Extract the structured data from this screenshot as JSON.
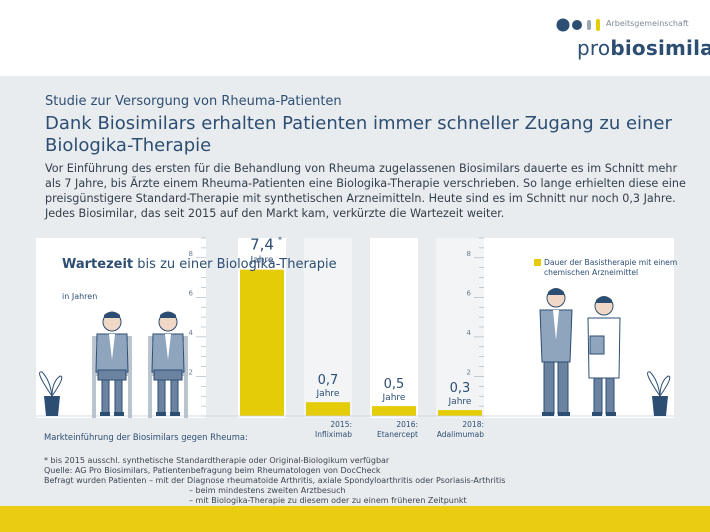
{
  "header": {
    "logo_sup": "Arbeitsgemeinschaft",
    "logo_pro": "pro",
    "logo_bio": "biosimilars",
    "kicker": "Studie zur Versorgung von Rheuma-Patienten",
    "title": "Dank Biosimilars erhalten Patienten immer schneller Zugang zu einer Biologika-Therapie",
    "intro": "Vor Einführung des ersten für die Behandlung von Rheuma zugelassenen Biosimilars dauerte es im Schnitt mehr als 7 Jahre, bis Ärzte einem Rheuma-Patienten eine Biologika-Therapie verschrieben. So lange erhielten diese eine preisgünstigere Standard-Therapie mit synthetischen Arzneimitteln. Heute sind es im Schnitt nur noch 0,3 Jahre. Jedes Biosimilar, das seit 2015 auf den Markt kam, verkürzte die Wartezeit weiter."
  },
  "chart_data": {
    "type": "bar",
    "title_bold": "Wartezeit",
    "title_rest": "bis zu einer Biologika-Therapie",
    "ylabel": "in Jahren",
    "xlabel": "Markteinführung der Biosimilars gegen Rheuma:",
    "legend": "Dauer der Basistherapie mit einem chemischen Arzneimittel",
    "unit_label": "Jahre",
    "ylim": [
      0,
      9
    ],
    "yticks": [
      "2",
      "4",
      "6",
      "8"
    ],
    "categories": [
      "",
      "2015: Infliximab",
      "2016: Etanercept",
      "2018: Adalimumab"
    ],
    "cat_lines": [
      [
        ""
      ],
      [
        "2015:",
        "Infliximab"
      ],
      [
        "2016:",
        "Etanercept"
      ],
      [
        "2018:",
        "Adalimumab"
      ]
    ],
    "values": [
      7.4,
      0.7,
      0.5,
      0.3
    ],
    "value_labels": [
      "7,4*",
      "0,7",
      "0,5",
      "0,3"
    ],
    "bar_color": "#e5cc09",
    "text_color": "#2d4e73"
  },
  "footer": {
    "note": "* bis 2015 ausschl. synthetische Standardtherapie oder Original-Biologikum verfügbar",
    "source": "Quelle:  AG Pro Biosimilars, Patientenbefragung beim Rheumatologen von DocCheck",
    "survey1": "Befragt wurden Patienten  – mit der Diagnose rheumatoide Arthritis, axiale Spondyloarthritis oder Psoriasis-Arthritis",
    "survey2": "– beim mindestens zweiten Arztbesuch",
    "survey3": "– mit Biologika-Therapie zu diesem oder zu einem früheren Zeitpunkt"
  }
}
